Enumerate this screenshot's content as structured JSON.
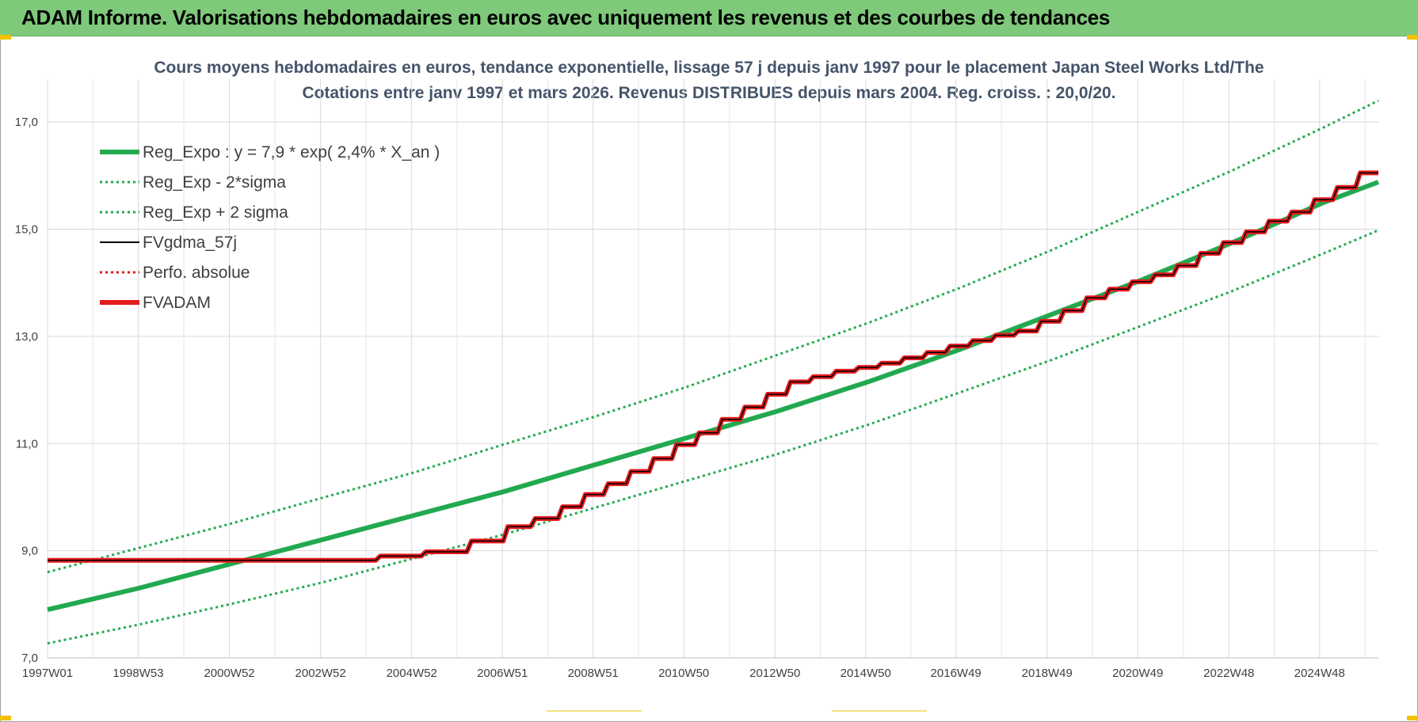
{
  "header": {
    "title": "ADAM Informe. Valorisations hebdomadaires en euros avec uniquement les revenus et des courbes de tendances"
  },
  "chart_data": {
    "type": "line",
    "title_lines": [
      "Cours moyens hebdomadaires en euros, tendance exponentielle, lissage 57 j depuis janv 1997 pour le placement Japan Steel Works Ltd/The",
      "Cotations entre janv 1997 et mars 2026. Revenus DISTRIBUES depuis mars 2004. Reg. croiss. : 20,0/20."
    ],
    "xlabel": "",
    "ylabel": "",
    "x_range": [
      1997.0,
      2026.2
    ],
    "ylim": [
      7.0,
      17.8
    ],
    "y_ticks": [
      7.0,
      9.0,
      11.0,
      13.0,
      15.0,
      17.0
    ],
    "y_tick_labels": [
      "7,0",
      "9,0",
      "11,0",
      "13,0",
      "15,0",
      "17,0"
    ],
    "x_ticks": [
      1997.0,
      1998.99,
      2000.99,
      2002.99,
      2004.99,
      2006.98,
      2008.97,
      2010.96,
      2012.96,
      2014.95,
      2016.93,
      2018.93,
      2020.92,
      2022.92,
      2024.91
    ],
    "x_tick_labels": [
      "1997W01",
      "1998W53",
      "2000W52",
      "2002W52",
      "2004W52",
      "2006W51",
      "2008W51",
      "2010W50",
      "2012W50",
      "2014W50",
      "2016W49",
      "2018W49",
      "2020W49",
      "2022W48",
      "2024W48"
    ],
    "grid": true,
    "legend_position": "top-left",
    "legend": [
      {
        "label": "Reg_Expo : y = 7,9 * exp( 2,4% *  X_an )",
        "color": "#22a94f",
        "style": "solid-thick"
      },
      {
        "label": "Reg_Exp - 2*sigma",
        "color": "#22a94f",
        "style": "dotted"
      },
      {
        "label": "Reg_Exp + 2 sigma",
        "color": "#22a94f",
        "style": "dotted"
      },
      {
        "label": "FVgdma_57j",
        "color": "#000000",
        "style": "solid"
      },
      {
        "label": "Perfo. absolue",
        "color": "#e31a1c",
        "style": "dotted"
      },
      {
        "label": "FVADAM",
        "color": "#e31a1c",
        "style": "solid-thick"
      }
    ],
    "series": [
      {
        "name": "Reg_Expo : y = 7,9 * exp( 2,4% *  X_an )",
        "x": [
          1997.0,
          1999.0,
          2001.0,
          2003.0,
          2005.0,
          2007.0,
          2009.0,
          2011.0,
          2013.0,
          2015.0,
          2017.0,
          2019.0,
          2021.0,
          2023.0,
          2025.0,
          2026.2
        ],
        "y": [
          7.9,
          8.3,
          8.75,
          9.2,
          9.65,
          10.1,
          10.6,
          11.1,
          11.6,
          12.15,
          12.75,
          13.4,
          14.05,
          14.75,
          15.5,
          15.88
        ]
      },
      {
        "name": "Reg_Exp - 2*sigma",
        "x": [
          1997.0,
          1999.0,
          2001.0,
          2003.0,
          2005.0,
          2007.0,
          2009.0,
          2011.0,
          2013.0,
          2015.0,
          2017.0,
          2019.0,
          2021.0,
          2023.0,
          2025.0,
          2026.2
        ],
        "y": [
          7.27,
          7.62,
          8.0,
          8.4,
          8.85,
          9.3,
          9.8,
          10.3,
          10.8,
          11.35,
          11.95,
          12.55,
          13.2,
          13.85,
          14.55,
          14.98
        ]
      },
      {
        "name": "Reg_Exp + 2 sigma",
        "x": [
          1997.0,
          1999.0,
          2001.0,
          2003.0,
          2005.0,
          2007.0,
          2009.0,
          2011.0,
          2013.0,
          2015.0,
          2017.0,
          2019.0,
          2021.0,
          2023.0,
          2025.0,
          2026.2
        ],
        "y": [
          8.6,
          9.05,
          9.5,
          9.98,
          10.45,
          10.98,
          11.5,
          12.05,
          12.65,
          13.25,
          13.9,
          14.6,
          15.35,
          16.1,
          16.9,
          17.4
        ]
      },
      {
        "name": "FVADAM",
        "x": [
          1997.0,
          2004.2,
          2004.3,
          2005.2,
          2005.3,
          2006.2,
          2006.3,
          2007.0,
          2007.1,
          2007.6,
          2007.7,
          2008.2,
          2008.3,
          2008.7,
          2008.8,
          2009.2,
          2009.3,
          2009.7,
          2009.8,
          2010.2,
          2010.3,
          2010.7,
          2010.8,
          2011.2,
          2011.3,
          2011.7,
          2011.8,
          2012.2,
          2012.3,
          2012.7,
          2012.8,
          2013.2,
          2013.3,
          2013.7,
          2013.8,
          2014.2,
          2014.3,
          2014.7,
          2014.8,
          2015.2,
          2015.3,
          2015.7,
          2015.8,
          2016.2,
          2016.3,
          2016.7,
          2016.8,
          2017.2,
          2017.3,
          2017.7,
          2017.8,
          2018.2,
          2018.3,
          2018.7,
          2018.8,
          2019.2,
          2019.3,
          2019.7,
          2019.8,
          2020.2,
          2020.3,
          2020.7,
          2020.8,
          2021.2,
          2021.3,
          2021.7,
          2021.8,
          2022.2,
          2022.3,
          2022.7,
          2022.8,
          2023.2,
          2023.3,
          2023.7,
          2023.8,
          2024.2,
          2024.3,
          2024.7,
          2024.8,
          2025.2,
          2025.3,
          2025.7,
          2025.8,
          2026.2
        ],
        "y": [
          8.82,
          8.82,
          8.9,
          8.9,
          8.98,
          8.98,
          9.18,
          9.18,
          9.45,
          9.45,
          9.6,
          9.6,
          9.82,
          9.82,
          10.05,
          10.05,
          10.25,
          10.25,
          10.48,
          10.48,
          10.72,
          10.72,
          10.98,
          10.98,
          11.2,
          11.2,
          11.45,
          11.45,
          11.68,
          11.68,
          11.92,
          11.92,
          12.15,
          12.15,
          12.25,
          12.25,
          12.35,
          12.35,
          12.42,
          12.42,
          12.5,
          12.5,
          12.6,
          12.6,
          12.7,
          12.7,
          12.82,
          12.82,
          12.92,
          12.92,
          13.02,
          13.02,
          13.1,
          13.1,
          13.28,
          13.28,
          13.48,
          13.48,
          13.72,
          13.72,
          13.88,
          13.88,
          14.02,
          14.02,
          14.15,
          14.15,
          14.32,
          14.32,
          14.55,
          14.55,
          14.75,
          14.75,
          14.95,
          14.95,
          15.15,
          15.15,
          15.32,
          15.32,
          15.55,
          15.55,
          15.78,
          15.78,
          16.05,
          16.05
        ]
      }
    ]
  }
}
